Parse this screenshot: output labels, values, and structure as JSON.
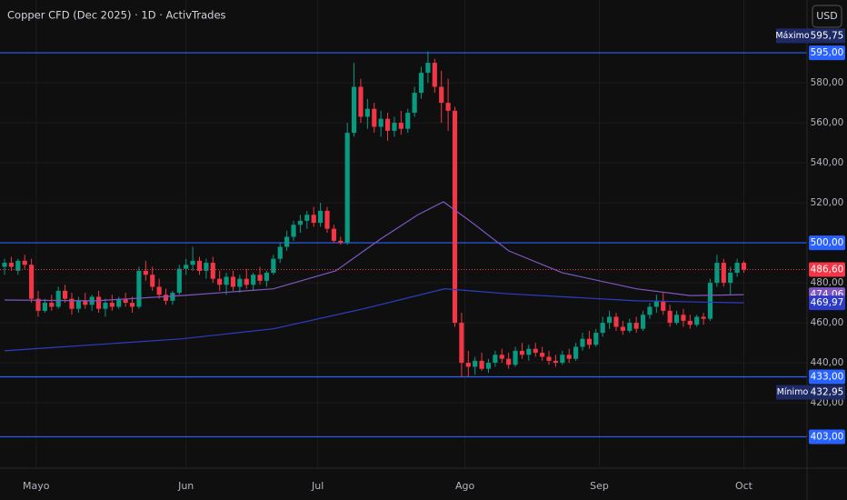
{
  "chart_data": {
    "type": "candlestick",
    "title": "Copper CFD (Dec 2025) · 1D · ActivTrades",
    "currency": "USD",
    "up_color": "#089981",
    "down_color": "#f23645",
    "candles": [
      [
        488,
        492,
        484,
        490
      ],
      [
        490,
        493,
        486,
        488
      ],
      [
        486,
        492,
        484,
        491
      ],
      [
        491,
        494,
        487,
        489
      ],
      [
        489,
        492,
        470,
        472
      ],
      [
        472,
        476,
        463,
        466
      ],
      [
        466,
        472,
        465,
        470
      ],
      [
        470,
        474,
        466,
        468
      ],
      [
        468,
        478,
        467,
        476
      ],
      [
        476,
        479,
        470,
        472
      ],
      [
        472,
        475,
        464,
        467
      ],
      [
        467,
        473,
        465,
        471
      ],
      [
        471,
        475,
        467,
        469
      ],
      [
        469,
        474,
        466,
        473
      ],
      [
        473,
        476,
        465,
        467
      ],
      [
        467,
        472,
        463,
        470
      ],
      [
        470,
        474,
        466,
        468
      ],
      [
        468,
        473,
        467,
        472
      ],
      [
        472,
        475,
        468,
        470
      ],
      [
        470,
        473,
        465,
        468
      ],
      [
        468,
        488,
        467,
        486
      ],
      [
        486,
        491,
        481,
        484
      ],
      [
        484,
        488,
        476,
        478
      ],
      [
        478,
        482,
        472,
        474
      ],
      [
        474,
        477,
        469,
        471
      ],
      [
        471,
        476,
        469,
        475
      ],
      [
        475,
        489,
        474,
        487
      ],
      [
        487,
        492,
        484,
        489
      ],
      [
        489,
        498,
        486,
        491
      ],
      [
        491,
        493,
        484,
        486
      ],
      [
        486,
        492,
        482,
        490
      ],
      [
        490,
        493,
        480,
        482
      ],
      [
        482,
        486,
        476,
        479
      ],
      [
        479,
        485,
        474,
        483
      ],
      [
        483,
        486,
        476,
        478
      ],
      [
        478,
        484,
        475,
        482
      ],
      [
        482,
        487,
        477,
        479
      ],
      [
        479,
        485,
        476,
        484
      ],
      [
        484,
        488,
        479,
        481
      ],
      [
        481,
        486,
        478,
        485
      ],
      [
        485,
        494,
        484,
        492
      ],
      [
        492,
        500,
        490,
        498
      ],
      [
        498,
        506,
        496,
        503
      ],
      [
        503,
        511,
        501,
        509
      ],
      [
        509,
        514,
        505,
        511
      ],
      [
        511,
        516,
        507,
        514
      ],
      [
        514,
        518,
        508,
        510
      ],
      [
        510,
        520,
        508,
        516
      ],
      [
        516,
        518,
        505,
        507
      ],
      [
        507,
        509,
        500,
        501
      ],
      [
        501,
        503,
        499,
        500
      ],
      [
        500,
        560,
        499,
        555
      ],
      [
        555,
        590,
        553,
        578
      ],
      [
        578,
        582,
        560,
        563
      ],
      [
        563,
        572,
        557,
        567
      ],
      [
        567,
        570,
        555,
        558
      ],
      [
        558,
        566,
        553,
        562
      ],
      [
        562,
        565,
        551,
        556
      ],
      [
        556,
        563,
        553,
        560
      ],
      [
        560,
        566,
        554,
        557
      ],
      [
        557,
        567,
        555,
        565
      ],
      [
        565,
        578,
        563,
        575
      ],
      [
        575,
        588,
        572,
        585
      ],
      [
        585,
        595.75,
        580,
        590
      ],
      [
        590,
        592,
        575,
        578
      ],
      [
        578,
        586,
        560,
        570
      ],
      [
        570,
        582,
        556,
        566
      ],
      [
        566,
        568,
        458,
        460
      ],
      [
        460,
        465,
        433,
        440
      ],
      [
        440,
        446,
        432.95,
        438
      ],
      [
        438,
        443,
        434,
        441
      ],
      [
        441,
        445,
        436,
        437
      ],
      [
        437,
        442,
        435,
        440
      ],
      [
        440,
        446,
        438,
        444
      ],
      [
        444,
        447,
        440,
        442
      ],
      [
        442,
        445,
        437,
        439
      ],
      [
        439,
        448,
        438,
        446
      ],
      [
        446,
        450,
        442,
        444
      ],
      [
        444,
        449,
        441,
        447
      ],
      [
        447,
        450,
        443,
        445
      ],
      [
        445,
        448,
        441,
        443
      ],
      [
        443,
        446,
        439,
        441
      ],
      [
        441,
        444,
        438,
        440
      ],
      [
        440,
        446,
        439,
        444
      ],
      [
        444,
        447,
        440,
        442
      ],
      [
        442,
        450,
        441,
        448
      ],
      [
        448,
        455,
        446,
        452
      ],
      [
        452,
        456,
        447,
        449
      ],
      [
        449,
        457,
        448,
        455
      ],
      [
        455,
        463,
        453,
        460
      ],
      [
        460,
        466,
        457,
        463
      ],
      [
        463,
        465,
        456,
        458
      ],
      [
        458,
        461,
        454,
        456
      ],
      [
        456,
        462,
        455,
        460
      ],
      [
        460,
        463,
        455,
        457
      ],
      [
        457,
        466,
        456,
        464
      ],
      [
        464,
        470,
        462,
        468
      ],
      [
        468,
        474,
        465,
        471
      ],
      [
        471,
        475,
        464,
        466
      ],
      [
        466,
        469,
        458,
        460
      ],
      [
        460,
        466,
        459,
        464
      ],
      [
        464,
        467,
        458,
        461
      ],
      [
        461,
        464,
        457,
        459
      ],
      [
        459,
        464,
        458,
        463
      ],
      [
        463,
        465,
        459,
        462
      ],
      [
        462,
        482,
        461,
        480
      ],
      [
        480,
        494,
        478,
        490
      ],
      [
        490,
        492,
        478,
        480
      ],
      [
        480,
        488,
        474,
        485
      ],
      [
        485,
        492,
        483,
        490
      ],
      [
        490,
        491,
        485,
        486.6
      ]
    ],
    "series": [
      {
        "color": "#7e57c2",
        "x": [
          0,
          13.5,
          26.4,
          40,
          49.3,
          56,
          61.5,
          65.3,
          69.6,
          75,
          83,
          94,
          102,
          110
        ],
        "values": [
          471.4,
          471,
          473.6,
          477,
          486,
          502,
          514,
          520.5,
          510,
          496,
          485,
          477,
          473.6,
          474.06
        ],
        "last_label": {
          "value": 474.06,
          "label": "474,06"
        }
      },
      {
        "color": "#2f3cc7",
        "x": [
          0,
          26.4,
          40,
          53.4,
          65.5,
          75,
          94,
          110
        ],
        "values": [
          446,
          452,
          457,
          467,
          477,
          474.5,
          471,
          469.97
        ],
        "last_label": {
          "value": 469.97,
          "label": "469,97"
        }
      }
    ],
    "last_price": {
      "value": 486.6,
      "label": "486,60"
    },
    "levels": [
      {
        "value": 595,
        "label": "595,00"
      },
      {
        "value": 500,
        "label": "500,00"
      },
      {
        "value": 433,
        "label": "433,00"
      },
      {
        "value": 403,
        "label": "403,00"
      }
    ],
    "extremes": [
      {
        "text": "Máximo",
        "value": 595.75,
        "label": "595,75"
      },
      {
        "text": "Mínimo",
        "value": 432.95,
        "label": "432,95"
      }
    ],
    "ylim": [
      387.3,
      621.4
    ],
    "yticks": [
      {
        "value": 420,
        "label": "420,00"
      },
      {
        "value": 440,
        "label": "440,00"
      },
      {
        "value": 460,
        "label": "460,00"
      },
      {
        "value": 480,
        "label": "480,00"
      },
      {
        "value": 520,
        "label": "520,00"
      },
      {
        "value": 540,
        "label": "540,00"
      },
      {
        "value": 560,
        "label": "560,00"
      },
      {
        "value": 580,
        "label": "580,00"
      }
    ],
    "xlim": [
      -0.68,
      119.4
    ],
    "xticks": [
      {
        "value": 4.7,
        "label": "Mayo"
      },
      {
        "value": 27,
        "label": "Jun"
      },
      {
        "value": 46.6,
        "label": "Jul"
      },
      {
        "value": 68.5,
        "label": "Ago"
      },
      {
        "value": 88.5,
        "label": "Sep"
      },
      {
        "value": 110,
        "label": "Oct"
      }
    ],
    "grid": true
  }
}
